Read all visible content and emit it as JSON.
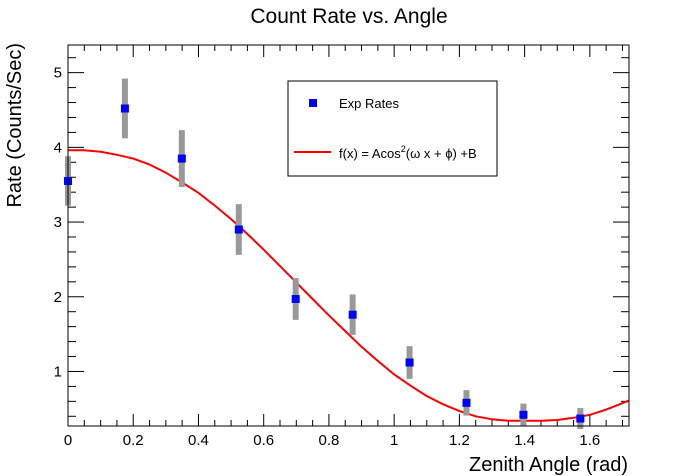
{
  "chart_data": {
    "type": "scatter",
    "title": "Count Rate vs. Angle",
    "xlabel": "Zenith Angle (rad)",
    "ylabel": "Rate (Counts/Sec)",
    "xlim": [
      0,
      1.72
    ],
    "ylim": [
      0.27,
      5.37
    ],
    "x_ticks": [
      0,
      0.2,
      0.4,
      0.6,
      0.8,
      1,
      1.2,
      1.4,
      1.6
    ],
    "x_tick_labels": [
      "0",
      "0.2",
      "0.4",
      "0.6",
      "0.8",
      "1",
      "1.2",
      "1.4",
      "1.6"
    ],
    "y_ticks": [
      1,
      2,
      3,
      4,
      5
    ],
    "y_tick_labels": [
      "1",
      "2",
      "3",
      "4",
      "5"
    ],
    "grid": false,
    "legend_position": "top-right",
    "series": [
      {
        "name": "Exp Rates",
        "type": "scatter",
        "color": "#0000ff",
        "error_color": "#999999",
        "x": [
          0,
          0.1745,
          0.349,
          0.5236,
          0.6981,
          0.8727,
          1.0472,
          1.2217,
          1.3963,
          1.5708
        ],
        "y": [
          3.55,
          4.52,
          3.85,
          2.9,
          1.97,
          1.76,
          1.12,
          0.58,
          0.42,
          0.37
        ],
        "y_err": [
          0.33,
          0.4,
          0.38,
          0.34,
          0.28,
          0.27,
          0.22,
          0.17,
          0.15,
          0.14
        ]
      },
      {
        "name": "f(x) = Acos²(ω x + ϕ) +B",
        "type": "line",
        "color": "#ff0000",
        "x": [
          0,
          0.05,
          0.1,
          0.15,
          0.2,
          0.25,
          0.3,
          0.35,
          0.4,
          0.45,
          0.5,
          0.55,
          0.6,
          0.65,
          0.7,
          0.75,
          0.8,
          0.85,
          0.9,
          0.95,
          1,
          1.05,
          1.1,
          1.15,
          1.2,
          1.25,
          1.3,
          1.35,
          1.4,
          1.45,
          1.5,
          1.55,
          1.6,
          1.65,
          1.72
        ],
        "y": [
          3.96,
          3.96,
          3.94,
          3.9,
          3.85,
          3.77,
          3.66,
          3.53,
          3.39,
          3.22,
          3.04,
          2.84,
          2.63,
          2.41,
          2.19,
          1.97,
          1.75,
          1.54,
          1.33,
          1.14,
          0.96,
          0.81,
          0.67,
          0.56,
          0.47,
          0.4,
          0.36,
          0.34,
          0.34,
          0.34,
          0.35,
          0.38,
          0.42,
          0.49,
          0.61
        ]
      }
    ],
    "legend": {
      "entries": [
        {
          "label": "Exp Rates",
          "marker": "square",
          "color": "#0000ff"
        },
        {
          "label_prefix": "f(x) = Acos",
          "label_sup": "2",
          "label_suffix": "(ω x + ϕ) +B",
          "marker": "line",
          "color": "#ff0000"
        }
      ]
    }
  }
}
